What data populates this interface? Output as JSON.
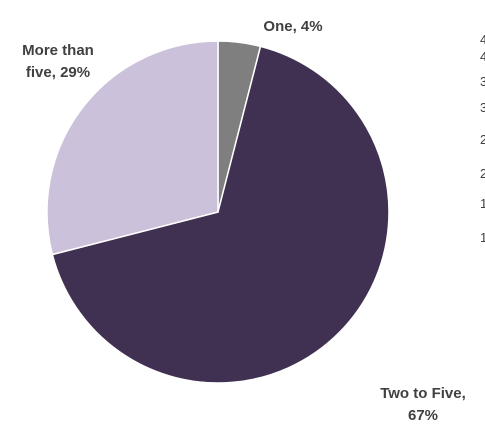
{
  "chart_data": {
    "type": "pie",
    "title": "",
    "slices": [
      {
        "label_lines": [
          "One, 4%"
        ],
        "value": 4,
        "color": "#7f7f7f"
      },
      {
        "label_lines": [
          "Two to Five,",
          "67%"
        ],
        "value": 67,
        "color": "#403152"
      },
      {
        "label_lines": [
          "More than",
          "five, 29%"
        ],
        "value": 29,
        "color": "#ccc1da"
      }
    ],
    "start_angle_deg": 0,
    "direction": "clockwise",
    "legend": "none"
  },
  "clipped_edge_text": [
    "4",
    "4",
    "3",
    "3",
    "2",
    "2",
    "1",
    "1"
  ]
}
